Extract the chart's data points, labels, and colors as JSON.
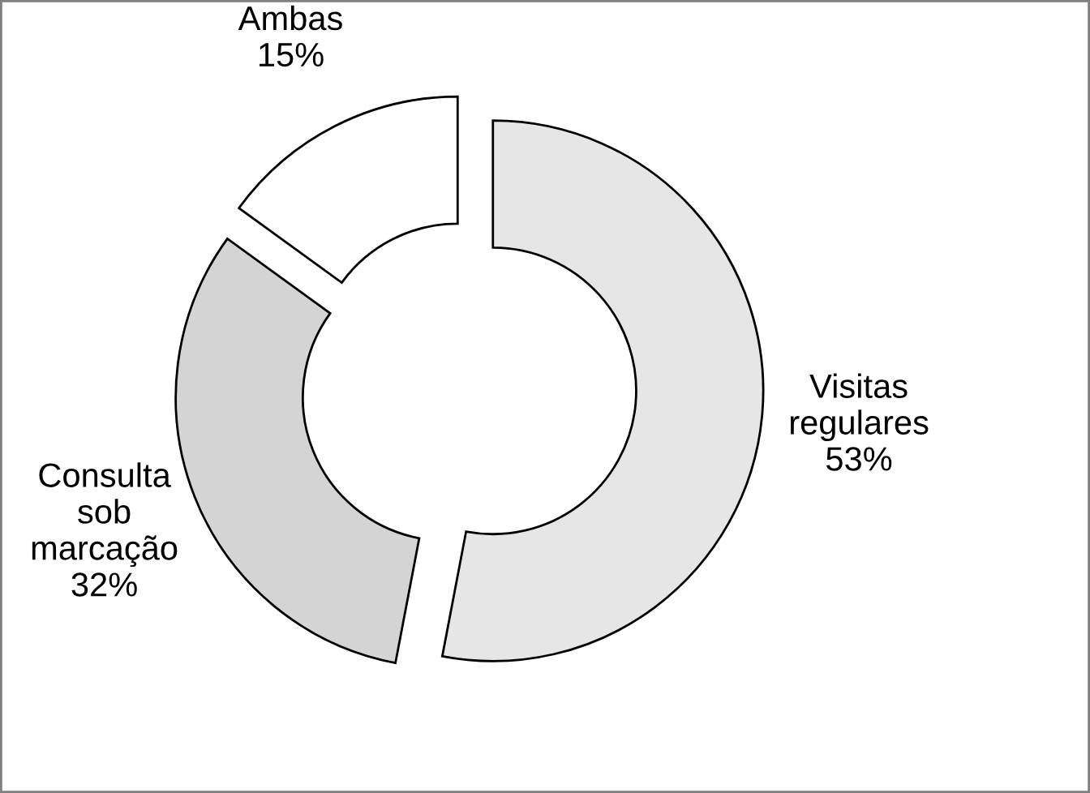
{
  "chart_data": {
    "type": "donut",
    "categories": [
      "Visitas regulares",
      "Consulta sob marcação",
      "Ambas"
    ],
    "values": [
      53,
      32,
      15
    ],
    "value_labels": [
      "53%",
      "32%",
      "15%"
    ],
    "colors": [
      "#e6e6e6",
      "#d4d4d4",
      "#ffffff"
    ]
  }
}
